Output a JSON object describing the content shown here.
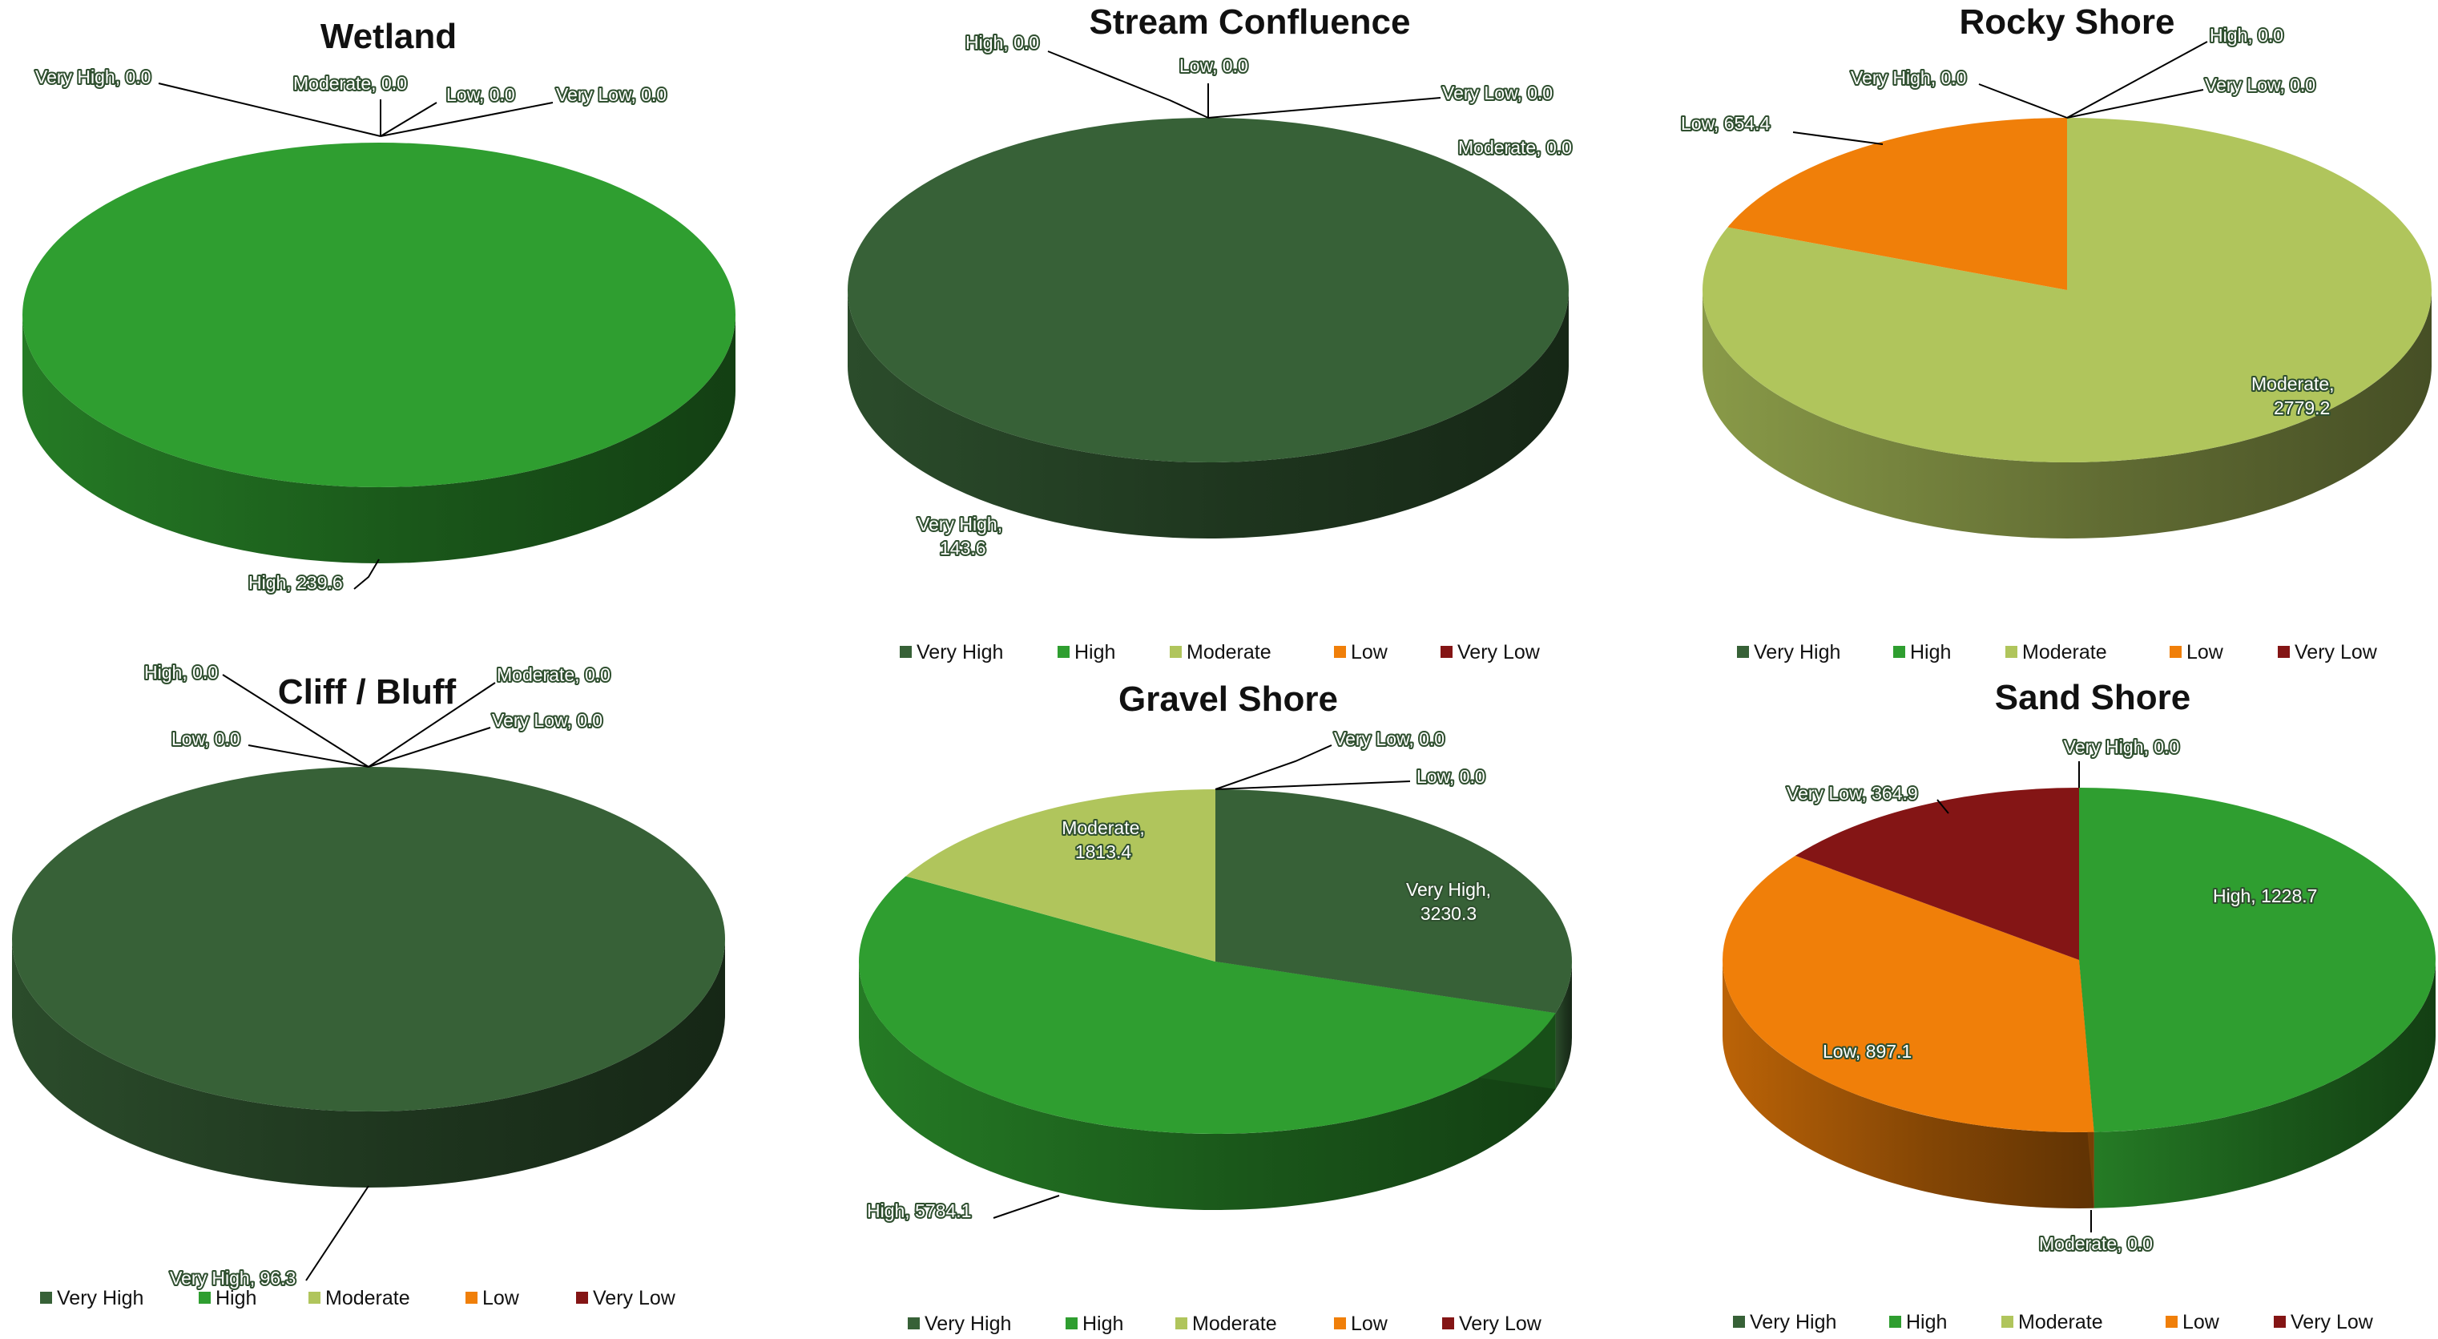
{
  "legend_labels": [
    "Very High",
    "High",
    "Moderate",
    "Low",
    "Very Low"
  ],
  "colors": {
    "Very High": "#376137",
    "High": "#2f9e30",
    "Moderate": "#b0c55c",
    "Low": "#f07f09",
    "Very Low": "#841515"
  },
  "chart_data": [
    {
      "type": "pie",
      "title": "Wetland",
      "categories": [
        "Very High",
        "High",
        "Moderate",
        "Low",
        "Very Low"
      ],
      "values": [
        0.0,
        239.6,
        0.0,
        0.0,
        0.0
      ],
      "data_labels": [
        "Very High, 0.0",
        "High, 239.6",
        "Moderate, 0.0",
        "Low, 0.0",
        "Very Low, 0.0"
      ],
      "legend": false
    },
    {
      "type": "pie",
      "title": "Stream Confluence",
      "categories": [
        "Very High",
        "High",
        "Moderate",
        "Low",
        "Very Low"
      ],
      "values": [
        143.6,
        0.0,
        0.0,
        0.0,
        0.0
      ],
      "data_labels": [
        "Very High, 143.6",
        "High, 0.0",
        "Moderate, 0.0",
        "Low, 0.0",
        "Very Low, 0.0"
      ],
      "legend": true
    },
    {
      "type": "pie",
      "title": "Rocky Shore",
      "categories": [
        "Very High",
        "High",
        "Moderate",
        "Low",
        "Very Low"
      ],
      "values": [
        0.0,
        0.0,
        2779.2,
        654.4,
        0.0
      ],
      "data_labels": [
        "Very High, 0.0",
        "High, 0.0",
        "Moderate, 2779.2",
        "Low, 654.4",
        "Very Low, 0.0"
      ],
      "legend": true
    },
    {
      "type": "pie",
      "title": "Cliff / Bluff",
      "categories": [
        "Very High",
        "High",
        "Moderate",
        "Low",
        "Very Low"
      ],
      "values": [
        96.3,
        0.0,
        0.0,
        0.0,
        0.0
      ],
      "data_labels": [
        "Very High, 96.3",
        "High, 0.0",
        "Moderate, 0.0",
        "Low, 0.0",
        "Very Low, 0.0"
      ],
      "legend": true
    },
    {
      "type": "pie",
      "title": "Gravel Shore",
      "categories": [
        "Very High",
        "High",
        "Moderate",
        "Low",
        "Very Low"
      ],
      "values": [
        3230.3,
        5784.1,
        1813.4,
        0.0,
        0.0
      ],
      "data_labels": [
        "Very High, 3230.3",
        "High, 5784.1",
        "Moderate, 1813.4",
        "Low, 0.0",
        "Very Low, 0.0"
      ],
      "legend": true
    },
    {
      "type": "pie",
      "title": "Sand Shore",
      "categories": [
        "Very High",
        "High",
        "Moderate",
        "Low",
        "Very Low"
      ],
      "values": [
        0.0,
        1228.7,
        0.0,
        897.1,
        364.9
      ],
      "data_labels": [
        "Very High, 0.0",
        "High, 1228.7",
        "Moderate, 0.0",
        "Low, 897.1",
        "Very Low, 364.9"
      ],
      "legend": true
    }
  ]
}
